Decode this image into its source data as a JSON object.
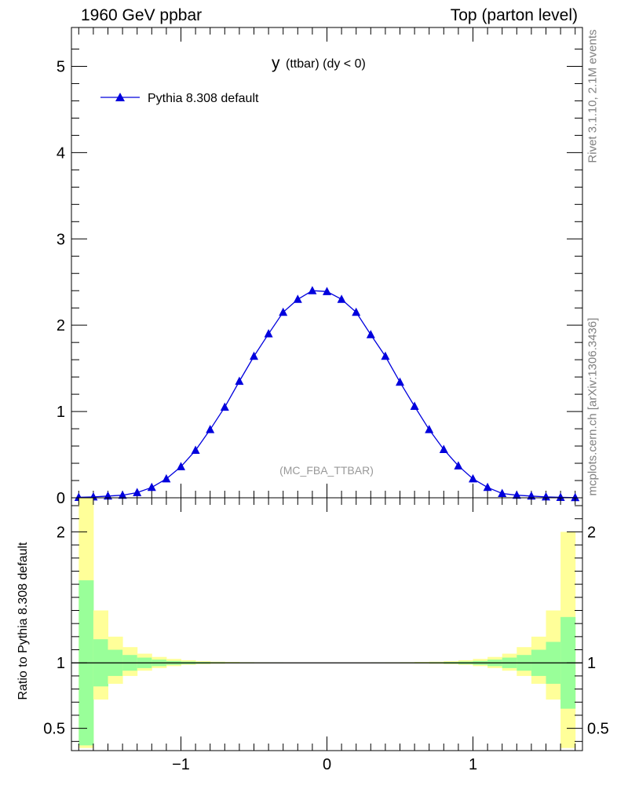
{
  "header": {
    "left": "1960 GeV ppbar",
    "right": "Top (parton level)"
  },
  "side_labels": {
    "rivet": "Rivet 3.1.10,  2.1M events",
    "mcplots": "mcplots.cern.ch [arXiv:1306.3436]"
  },
  "colors": {
    "series": "#0000dd",
    "band_inner": "#99ff99",
    "band_outer": "#ffff99",
    "axis": "#000000",
    "tag": "#999999"
  },
  "chart_data": [
    {
      "type": "line",
      "title_main": "y",
      "title_sub": "(ttbar) (dy < 0)",
      "annotation": "(MC_FBA_TTBAR)",
      "xlim": [
        -1.75,
        1.75
      ],
      "ylim": [
        0,
        5.45
      ],
      "yticks": [
        "0",
        "1",
        "2",
        "3",
        "4",
        "5"
      ],
      "xlabel": "",
      "ylabel": "",
      "legend": {
        "placement": "top-left"
      },
      "series": [
        {
          "name": "Pythia 8.308 default",
          "marker": "triangle",
          "x": [
            -1.7,
            -1.6,
            -1.5,
            -1.4,
            -1.3,
            -1.2,
            -1.1,
            -1.0,
            -0.9,
            -0.8,
            -0.7,
            -0.6,
            -0.5,
            -0.4,
            -0.3,
            -0.2,
            -0.1,
            0.0,
            0.1,
            0.2,
            0.3,
            0.4,
            0.5,
            0.6,
            0.7,
            0.8,
            0.9,
            1.0,
            1.1,
            1.2,
            1.3,
            1.4,
            1.5,
            1.6,
            1.7
          ],
          "y": [
            0.005,
            0.01,
            0.02,
            0.03,
            0.06,
            0.12,
            0.22,
            0.36,
            0.55,
            0.79,
            1.05,
            1.35,
            1.64,
            1.9,
            2.15,
            2.3,
            2.4,
            2.39,
            2.3,
            2.15,
            1.89,
            1.64,
            1.34,
            1.06,
            0.79,
            0.56,
            0.37,
            0.22,
            0.12,
            0.05,
            0.03,
            0.02,
            0.01,
            0.005,
            0.002
          ]
        }
      ]
    },
    {
      "type": "area",
      "ylabel": "Ratio to Pythia 8.308 default",
      "xlim": [
        -1.75,
        1.75
      ],
      "xticks": [
        "−1",
        "0",
        "1"
      ],
      "ylim": [
        0.33,
        2.26
      ],
      "yticks": [
        "0.5",
        "1",
        "2"
      ],
      "reference": 1.0,
      "bands": {
        "x_edges": [
          -1.7,
          -1.6,
          -1.5,
          -1.4,
          -1.3,
          -1.2,
          -1.1,
          -1.0,
          -0.9,
          -0.8,
          -0.7,
          -0.6,
          -0.5,
          -0.4,
          -0.3,
          -0.2,
          -0.1,
          0.0,
          0.1,
          0.2,
          0.3,
          0.4,
          0.5,
          0.6,
          0.7,
          0.8,
          0.9,
          1.0,
          1.1,
          1.2,
          1.3,
          1.4,
          1.5,
          1.6,
          1.7
        ],
        "inner_lo": [
          0.37,
          0.82,
          0.9,
          0.94,
          0.96,
          0.975,
          0.985,
          0.99,
          0.993,
          0.995,
          0.996,
          0.997,
          0.998,
          0.998,
          0.999,
          0.999,
          0.999,
          0.999,
          0.999,
          0.999,
          0.998,
          0.998,
          0.997,
          0.996,
          0.995,
          0.993,
          0.99,
          0.985,
          0.975,
          0.96,
          0.94,
          0.9,
          0.84,
          0.65
        ],
        "inner_hi": [
          1.63,
          1.18,
          1.1,
          1.06,
          1.04,
          1.025,
          1.015,
          1.01,
          1.007,
          1.005,
          1.004,
          1.003,
          1.002,
          1.002,
          1.001,
          1.001,
          1.001,
          1.001,
          1.001,
          1.001,
          1.002,
          1.002,
          1.003,
          1.004,
          1.005,
          1.007,
          1.01,
          1.015,
          1.025,
          1.04,
          1.06,
          1.1,
          1.16,
          1.35
        ],
        "outer_lo": [
          0.35,
          0.72,
          0.84,
          0.9,
          0.94,
          0.96,
          0.975,
          0.985,
          0.99,
          0.993,
          0.995,
          0.996,
          0.997,
          0.998,
          0.998,
          0.999,
          0.999,
          0.999,
          0.999,
          0.998,
          0.998,
          0.997,
          0.996,
          0.995,
          0.993,
          0.99,
          0.985,
          0.975,
          0.96,
          0.94,
          0.9,
          0.84,
          0.72,
          0.35
        ],
        "outer_hi": [
          2.26,
          1.4,
          1.2,
          1.12,
          1.07,
          1.045,
          1.03,
          1.02,
          1.013,
          1.009,
          1.007,
          1.005,
          1.004,
          1.003,
          1.002,
          1.002,
          1.002,
          1.002,
          1.002,
          1.002,
          1.003,
          1.004,
          1.005,
          1.007,
          1.009,
          1.013,
          1.02,
          1.03,
          1.045,
          1.07,
          1.12,
          1.2,
          1.4,
          2.0
        ]
      }
    }
  ]
}
